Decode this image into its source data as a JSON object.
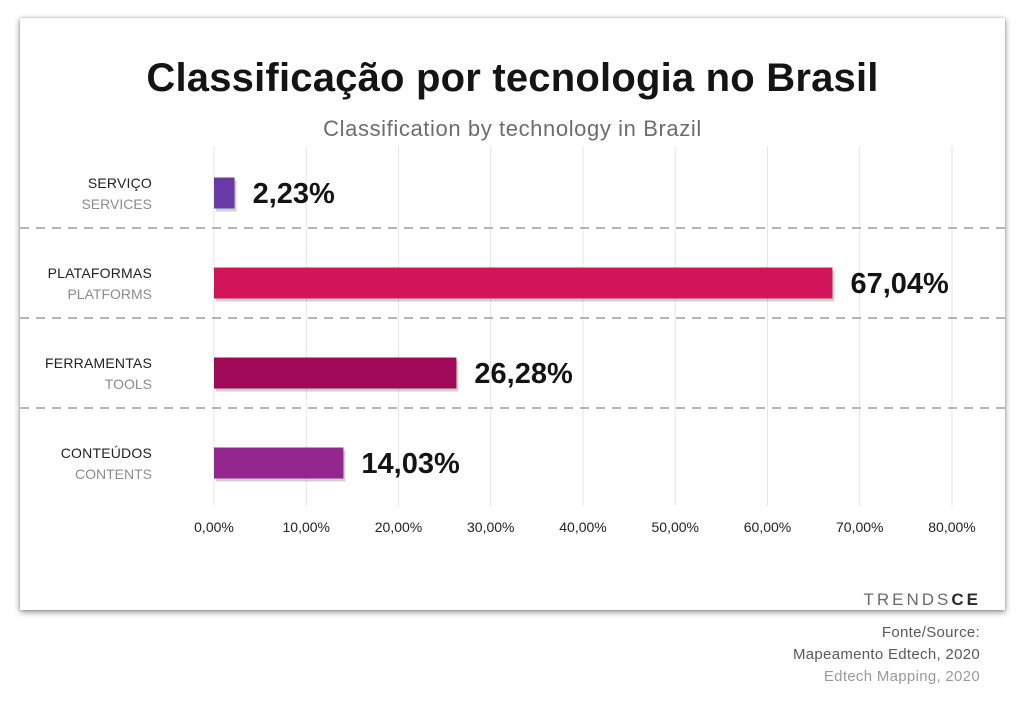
{
  "title": "Classificação por tecnologia no Brasil",
  "subtitle": "Classification by technology in Brazil",
  "logo": {
    "main": "TRENDS",
    "accent": "CE"
  },
  "source": {
    "line1": "Fonte/Source:",
    "line2": "Mapeamento Edtech, 2020",
    "line3": "Edtech Mapping, 2020"
  },
  "chart_data": {
    "type": "bar",
    "orientation": "horizontal",
    "title": "Classificação por tecnologia no Brasil",
    "subtitle": "Classification by technology in Brazil",
    "categories": [
      {
        "pt": "SERVIÇO",
        "en": "SERVICES",
        "value": 2.23,
        "label": "2,23%",
        "color": "#6a3aa8"
      },
      {
        "pt": "PLATAFORMAS",
        "en": "PLATFORMS",
        "value": 67.04,
        "label": "67,04%",
        "color": "#d4145a"
      },
      {
        "pt": "FERRAMENTAS",
        "en": "TOOLS",
        "value": 26.28,
        "label": "26,28%",
        "color": "#a00858"
      },
      {
        "pt": "CONTEÚDOS",
        "en": "CONTENTS",
        "value": 14.03,
        "label": "14,03%",
        "color": "#93268f"
      }
    ],
    "xlim": [
      0,
      80
    ],
    "xticks": [
      "0,00%",
      "10,00%",
      "20,00%",
      "30,00%",
      "40,00%",
      "50,00%",
      "60,00%",
      "70,00%",
      "80,00%"
    ],
    "grid": true,
    "legend": "none"
  }
}
